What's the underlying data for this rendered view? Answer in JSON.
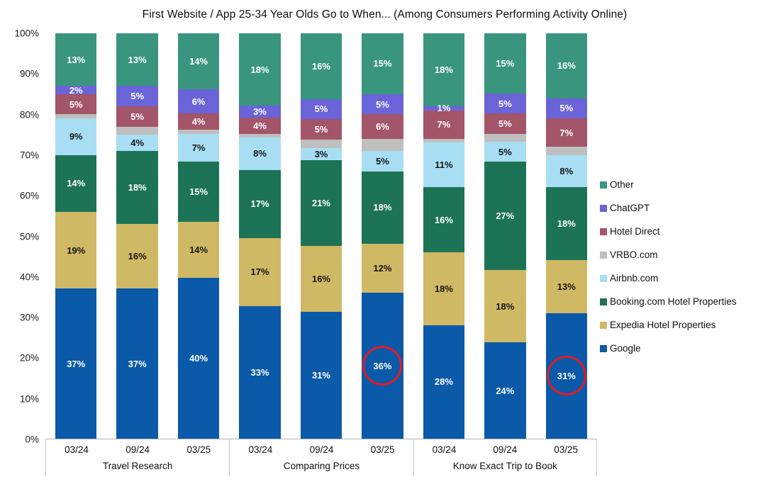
{
  "title": "First Website / App 25-34 Year Olds Go to When... (Among Consumers Performing Activity Online)",
  "y_axis_ticks": [
    "100%",
    "90%",
    "80%",
    "70%",
    "60%",
    "50%",
    "40%",
    "30%",
    "20%",
    "10%",
    "0%"
  ],
  "legend": [
    {
      "label": "Other",
      "color": "#39957E"
    },
    {
      "label": "ChatGPT",
      "color": "#6B63D8"
    },
    {
      "label": "Hotel Direct",
      "color": "#A3556A"
    },
    {
      "label": "VRBO.com",
      "color": "#BFBFBF"
    },
    {
      "label": "Airbnb.com",
      "color": "#A8DEF4"
    },
    {
      "label": "Booking.com Hotel Properties",
      "color": "#1D7356"
    },
    {
      "label": "Expedia Hotel Properties",
      "color": "#CFB965"
    },
    {
      "label": "Google",
      "color": "#0B59A9"
    }
  ],
  "chart_data": {
    "type": "bar",
    "stacked": true,
    "title": "First Website / App 25-34 Year Olds Go to When... (Among Consumers Performing Activity Online)",
    "ylabel": "",
    "xlabel": "",
    "ylim": [
      0,
      100
    ],
    "grid": false,
    "legend_position": "right",
    "groups": [
      {
        "label": "Travel Research",
        "categories": [
          "03/24",
          "09/24",
          "03/25"
        ]
      },
      {
        "label": "Comparing Prices",
        "categories": [
          "03/24",
          "09/24",
          "03/25"
        ]
      },
      {
        "label": "Know Exact Trip to Book",
        "categories": [
          "03/24",
          "09/24",
          "03/25"
        ]
      }
    ],
    "bar_order_note": "values arrays run across all 9 bars: Travel Research 03/24,09/24,03/25 then Comparing Prices 03/24,09/24,03/25 then Know Exact Trip to Book 03/24,09/24,03/25",
    "series_bottom_to_top": [
      {
        "name": "Google",
        "color": "#0B59A9",
        "label_color": "#FFFFFF",
        "show_label": true,
        "values": [
          37,
          37,
          40,
          33,
          31,
          36,
          28,
          24,
          31
        ]
      },
      {
        "name": "Expedia Hotel Properties",
        "color": "#CFB965",
        "label_color": "#151515",
        "show_label": true,
        "values": [
          19,
          16,
          14,
          17,
          16,
          12,
          18,
          18,
          13
        ]
      },
      {
        "name": "Booking.com Hotel Properties",
        "color": "#1D7356",
        "label_color": "#FFFFFF",
        "show_label": true,
        "values": [
          14,
          18,
          15,
          17,
          21,
          18,
          16,
          27,
          18
        ]
      },
      {
        "name": "Airbnb.com",
        "color": "#A8DEF4",
        "label_color": "#151515",
        "show_label": true,
        "values": [
          9,
          4,
          7,
          8,
          3,
          5,
          11,
          5,
          8
        ]
      },
      {
        "name": "VRBO.com",
        "color": "#BFBFBF",
        "label_color": "#151515",
        "show_label": false,
        "values": [
          1,
          2,
          1,
          1,
          2,
          3,
          1,
          2,
          2
        ]
      },
      {
        "name": "Hotel Direct",
        "color": "#A3556A",
        "label_color": "#FFFFFF",
        "show_label": true,
        "values": [
          5,
          5,
          4,
          4,
          5,
          6,
          7,
          5,
          7
        ]
      },
      {
        "name": "ChatGPT",
        "color": "#6B63D8",
        "label_color": "#FFFFFF",
        "show_label": true,
        "values": [
          2,
          5,
          6,
          3,
          5,
          5,
          1,
          5,
          5
        ]
      },
      {
        "name": "Other",
        "color": "#39957E",
        "label_color": "#FFFFFF",
        "show_label": true,
        "values": [
          13,
          13,
          14,
          18,
          16,
          15,
          18,
          15,
          16
        ]
      }
    ],
    "annotations": [
      {
        "type": "circle",
        "bar_index": 5,
        "series": "Google",
        "value_label": "36%",
        "color": "#E21B22"
      },
      {
        "type": "circle",
        "bar_index": 8,
        "series": "Google",
        "value_label": "31%",
        "color": "#E21B22"
      }
    ]
  }
}
